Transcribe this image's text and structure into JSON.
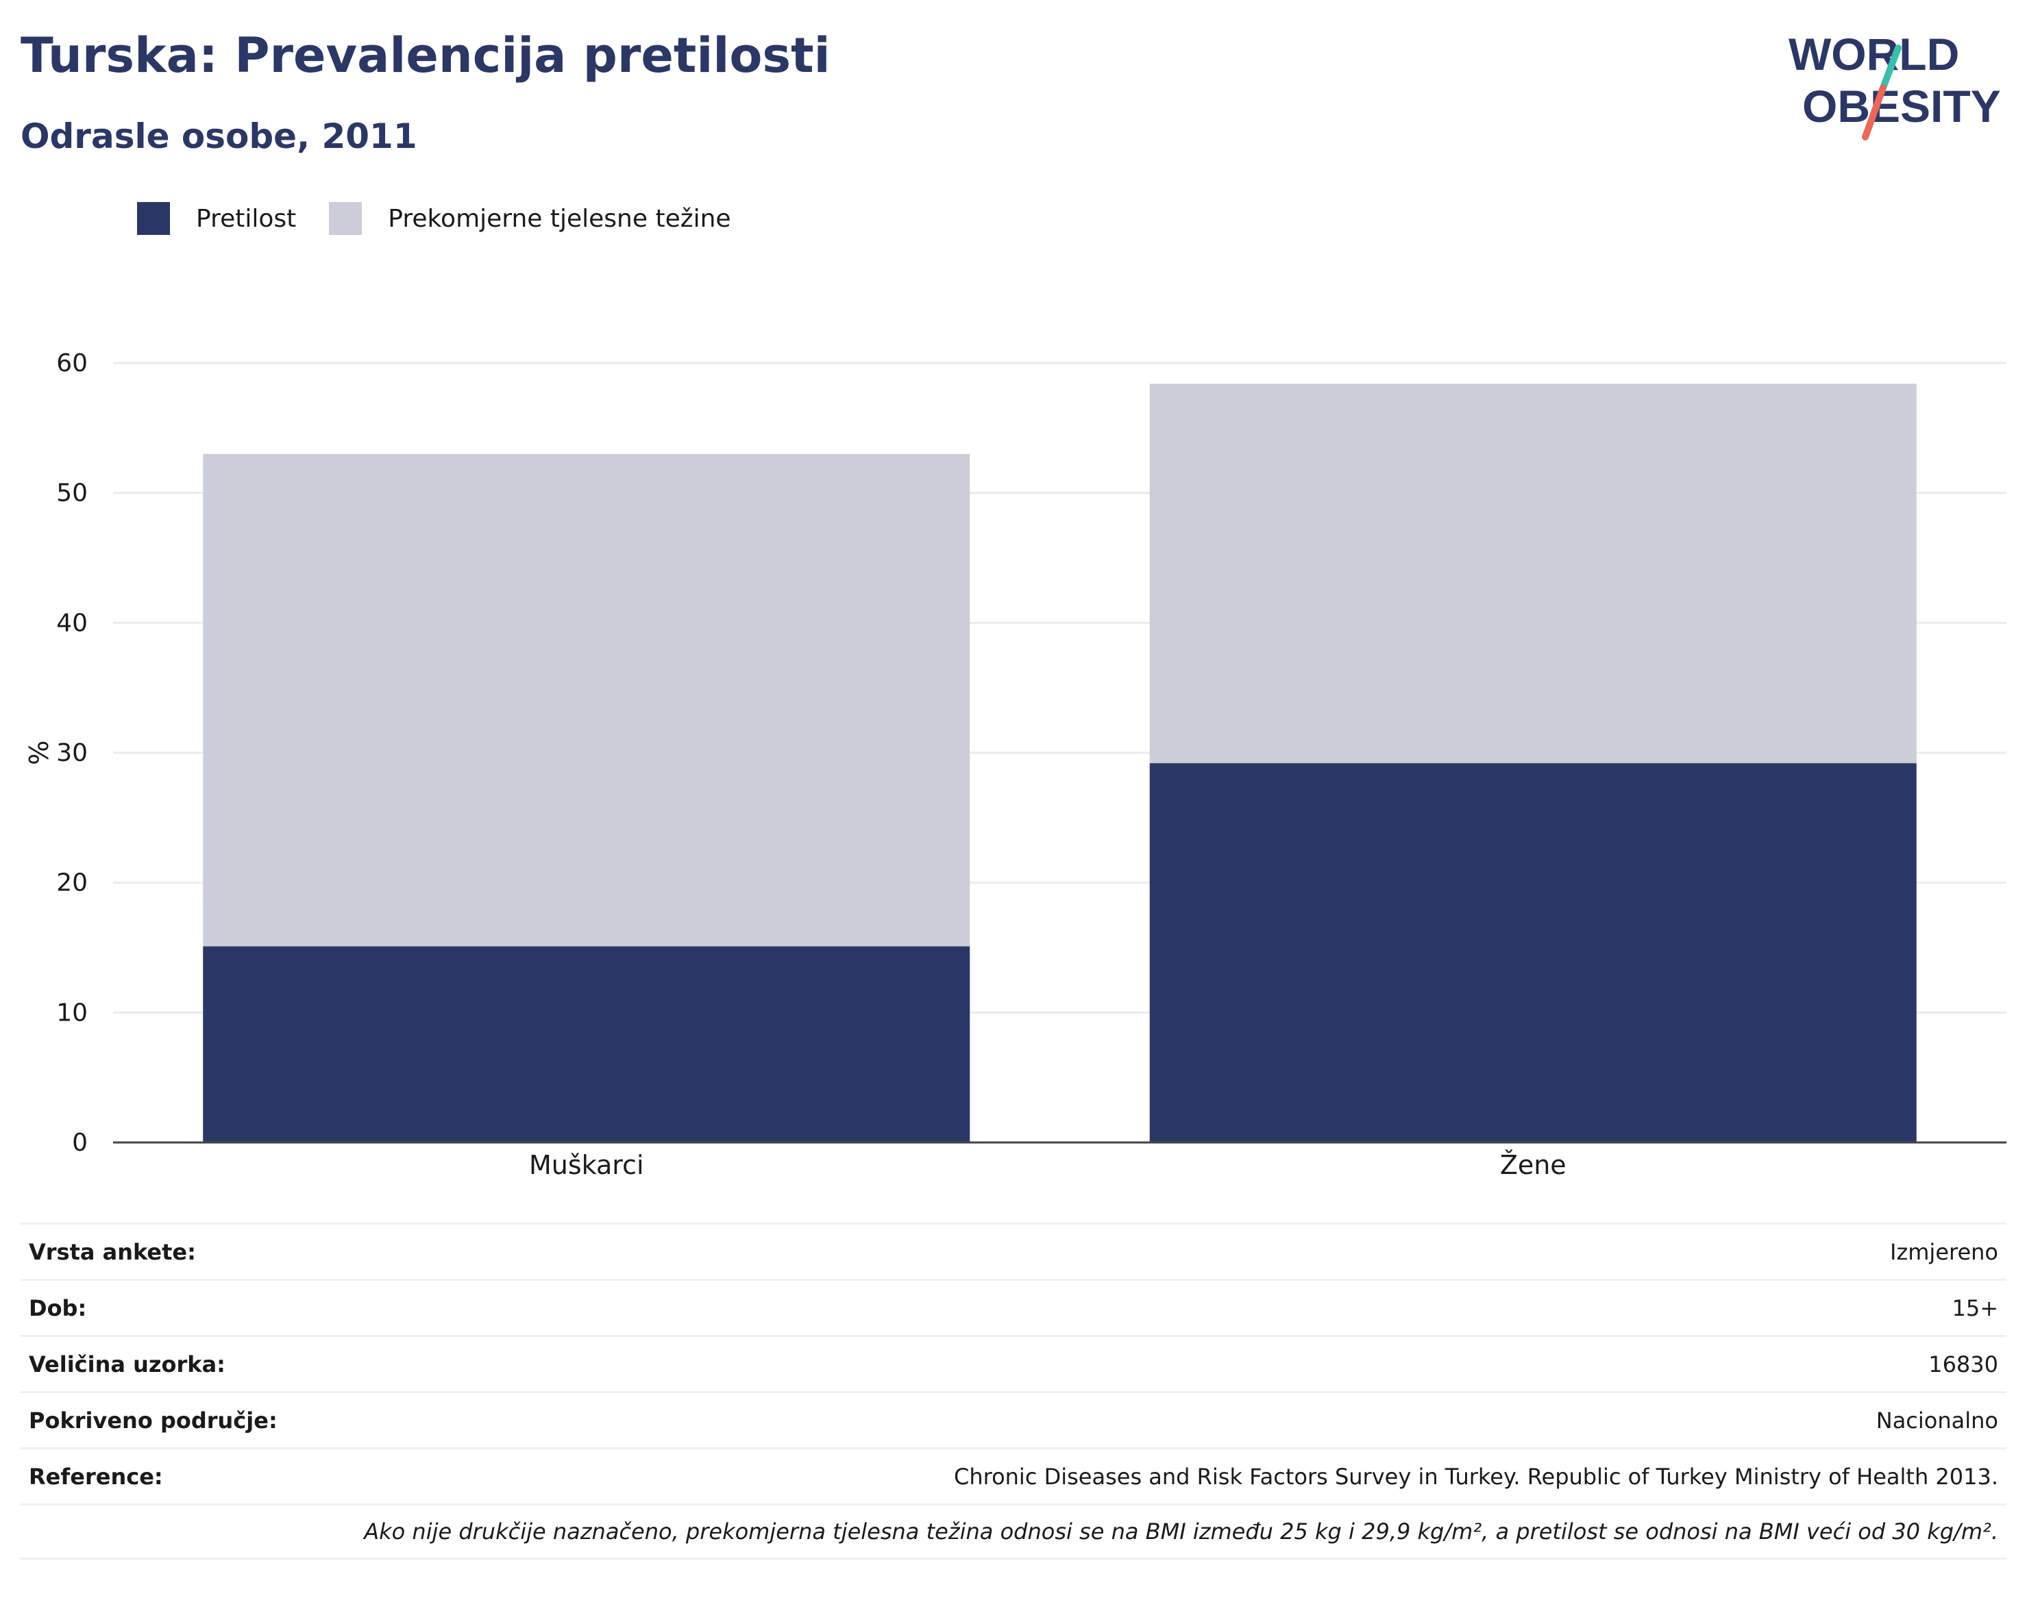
{
  "header": {
    "title": "Turska: Prevalencija pretilosti",
    "subtitle": "Odrasle osobe, 2011"
  },
  "logo": {
    "line1": "WORLD",
    "line2": "OBESITY",
    "text_color": "#2b3765",
    "accent_teal": "#3bbfad",
    "accent_coral": "#e8685a"
  },
  "legend": {
    "items": [
      {
        "label": "Pretilost",
        "color": "#2b3765"
      },
      {
        "label": "Prekomjerne tjelesne težine",
        "color": "#cbcdd8"
      }
    ]
  },
  "chart_data": {
    "type": "bar",
    "stacked": true,
    "categories": [
      "Muškarci",
      "Žene"
    ],
    "series": [
      {
        "name": "Pretilost",
        "values": [
          15.1,
          29.2
        ],
        "color": "#2b3765"
      },
      {
        "name": "Prekomjerne tjelesne težine",
        "values": [
          37.9,
          29.2
        ],
        "color": "#cbcdd8"
      }
    ],
    "ylabel": "%",
    "ylim": [
      0,
      60
    ],
    "yticks": [
      0,
      10,
      20,
      30,
      40,
      50,
      60
    ],
    "grid": true,
    "legend_position": "top-left"
  },
  "info": {
    "rows": [
      {
        "label": "Vrsta ankete:",
        "value": "Izmjereno"
      },
      {
        "label": "Dob:",
        "value": "15+"
      },
      {
        "label": "Veličina uzorka:",
        "value": "16830"
      },
      {
        "label": "Pokriveno područje:",
        "value": "Nacionalno"
      },
      {
        "label": "Reference:",
        "value": "Chronic Diseases and Risk Factors Survey in Turkey. Republic of Turkey Ministry of Health 2013."
      }
    ],
    "note": "Ako nije drukčije naznačeno, prekomjerna tjelesna težina odnosi se na BMI između 25 kg i 29,9 kg/m², a pretilost se odnosi na BMI veći od 30 kg/m²."
  }
}
